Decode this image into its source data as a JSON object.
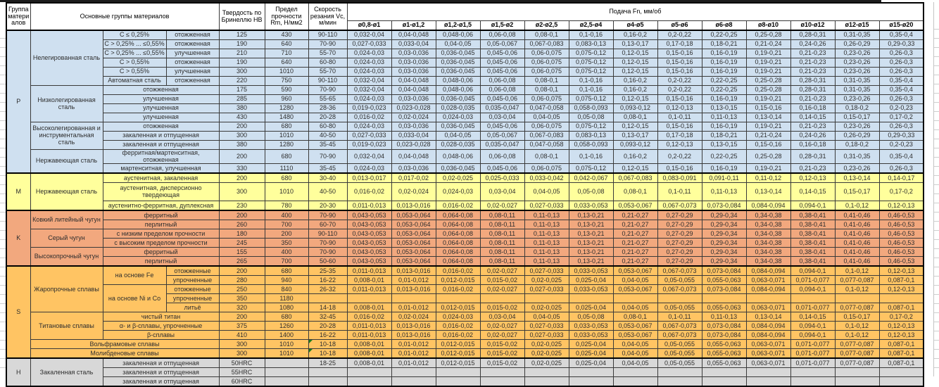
{
  "table": {
    "headers": {
      "group": "Группа материалов",
      "materials": "Основные группы материалов",
      "hardness": "Твердость по Бринеллю HB",
      "tensile": "Предел прочности Rm, Н/мм2",
      "speed": "Скорость резания Vc, м/мин",
      "feed": "Подача Fn, мм/об"
    },
    "feed_sizes": [
      "ø0,8-ø1",
      "ø1-ø1,2",
      "ø1,2-ø1,5",
      "ø1,5-ø2",
      "ø2-ø2,5",
      "ø2,5-ø4",
      "ø4-ø5",
      "ø5-ø6",
      "ø6-ø8",
      "ø8-ø10",
      "ø10-ø12",
      "ø12-ø15",
      "ø15-ø20"
    ],
    "feed_patterns": {
      "A": [
        "0,032-0,04",
        "0,04-0,048",
        "0,048-0,06",
        "0,06-0,08",
        "0,08-0,1",
        "0,1-0,16",
        "0,16-0,2",
        "0,2-0,22",
        "0,22-0,25",
        "0,25-0,28",
        "0,28-0,31",
        "0,31-0,35",
        "0,35-0,4"
      ],
      "B": [
        "0,027-0,033",
        "0,033-0,04",
        "0,04-0,05",
        "0,05-0,067",
        "0,067-0,083",
        "0,083-0,13",
        "0,13-0,17",
        "0,17-0,18",
        "0,18-0,21",
        "0,21-0,24",
        "0,24-0,26",
        "0,26-0,29",
        "0,29-0,33"
      ],
      "C": [
        "0,024-0,03",
        "0,03-0,036",
        "0,036-0,045",
        "0,045-0,06",
        "0,06-0,075",
        "0,075-0,12",
        "0,12-0,15",
        "0,15-0,16",
        "0,16-0,19",
        "0,19-0,21",
        "0,21-0,23",
        "0,23-0,26",
        "0,26-0,3"
      ],
      "D": [
        "0,019-0,023",
        "0,023-0,028",
        "0,028-0,035",
        "0,035-0,047",
        "0,047-0,058",
        "0,058-0,093",
        "0,093-0,12",
        "0,12-0,13",
        "0,13-0,15",
        "0,15-0,16",
        "0,16-0,18",
        "0,18-0,2",
        "0,2-0,23"
      ],
      "E": [
        "0,016-0,02",
        "0,02-0,024",
        "0,024-0,03",
        "0,03-0,04",
        "0,04-0,05",
        "0,05-0,08",
        "0,08-0,1",
        "0,1-0,11",
        "0,11-0,13",
        "0,13-0,14",
        "0,14-0,15",
        "0,15-0,17",
        "0,17-0,2"
      ],
      "F": [
        "0,013-0,017",
        "0,017-0,02",
        "0,02-0,025",
        "0,025-0,033",
        "0,033-0,042",
        "0,042-0,067",
        "0,067-0,083",
        "0,083-0,091",
        "0,091-0,11",
        "0,11-0,12",
        "0,12-0,13",
        "0,13-0,14",
        "0,14-0,17"
      ],
      "G": [
        "0,011-0,013",
        "0,013-0,016",
        "0,016-0,02",
        "0,02-0,027",
        "0,027-0,033",
        "0,033-0,053",
        "0,053-0,067",
        "0,067-0,073",
        "0,073-0,084",
        "0,084-0,094",
        "0,094-0,1",
        "0,1-0,12",
        "0,12-0,13"
      ],
      "H": [
        "0,008-0,01",
        "0,01-0,012",
        "0,012-0,015",
        "0,015-0,02",
        "0,02-0,025",
        "0,025-0,04",
        "0,04-0,05",
        "0,05-0,055",
        "0,055-0,063",
        "0,063-0,071",
        "0,071-0,077",
        "0,077-0,087",
        "0,087-0,1"
      ],
      "K": [
        "0,043-0,053",
        "0,053-0,064",
        "0,064-0,08",
        "0,08-0,11",
        "0,11-0,13",
        "0,13-0,21",
        "0,21-0,27",
        "0,27-0,29",
        "0,29-0,34",
        "0,34-0,38",
        "0,38-0,41",
        "0,41-0,46",
        "0,46-0,53"
      ]
    },
    "sections": [
      {
        "code": "P",
        "color": "#CFE0F0",
        "rows": [
          {
            "labels": [
              {
                "text": "Нелегированная сталь",
                "rs": 6
              },
              {
                "text": "C ≤ 0,25%"
              },
              {
                "text": "отожженная"
              }
            ],
            "hb": "125",
            "rm": "430",
            "vc": "90-110",
            "f": "A"
          },
          {
            "labels": [
              {
                "text": "C > 0,25% ... ≤0,55%"
              },
              {
                "text": "отожженная"
              }
            ],
            "hb": "190",
            "rm": "640",
            "vc": "70-90",
            "f": "B"
          },
          {
            "labels": [
              {
                "text": "C > 0,25% ... ≤0,55%"
              },
              {
                "text": "улучшенная"
              }
            ],
            "hb": "210",
            "rm": "710",
            "vc": "55-70",
            "f": "C"
          },
          {
            "labels": [
              {
                "text": "C > 0,55%"
              },
              {
                "text": "отожженная"
              }
            ],
            "hb": "190",
            "rm": "640",
            "vc": "60-80",
            "f": "C"
          },
          {
            "labels": [
              {
                "text": "C > 0,55%"
              },
              {
                "text": "улучшенная"
              }
            ],
            "hb": "300",
            "rm": "1010",
            "vc": "55-70",
            "f": "C"
          },
          {
            "labels": [
              {
                "text": "Автоматная сталь"
              },
              {
                "text": "отожженная"
              }
            ],
            "hb": "220",
            "rm": "750",
            "vc": "90-110",
            "f": "A"
          },
          {
            "labels": [
              {
                "text": "Низколегированная сталь",
                "rs": 4
              },
              {
                "text": "отожженная",
                "cs": 2
              }
            ],
            "hb": "175",
            "rm": "590",
            "vc": "70-90",
            "f": "A"
          },
          {
            "labels": [
              {
                "text": "улучшенная",
                "cs": 2
              }
            ],
            "hb": "285",
            "rm": "960",
            "vc": "55-65",
            "f": "C"
          },
          {
            "labels": [
              {
                "text": "улучшенная",
                "cs": 2
              }
            ],
            "hb": "380",
            "rm": "1280",
            "vc": "28-36",
            "f": "D"
          },
          {
            "labels": [
              {
                "text": "улучшенная",
                "cs": 2
              }
            ],
            "hb": "430",
            "rm": "1480",
            "vc": "20-28",
            "f": "E"
          },
          {
            "labels": [
              {
                "text": "Высоколегированная и инструментальная сталь",
                "rs": 3
              },
              {
                "text": "отожженная",
                "cs": 2
              }
            ],
            "hb": "200",
            "rm": "680",
            "vc": "60-80",
            "f": "C"
          },
          {
            "labels": [
              {
                "text": "закаленная и отпущенная",
                "cs": 2
              }
            ],
            "hb": "300",
            "rm": "1010",
            "vc": "40-50",
            "f": "B"
          },
          {
            "labels": [
              {
                "text": "закаленная и отпущенная",
                "cs": 2
              }
            ],
            "hb": "380",
            "rm": "1280",
            "vc": "35-45",
            "f": "D"
          },
          {
            "labels": [
              {
                "text": "Нержавеющая сталь",
                "rs": 2
              },
              {
                "text": "ферритная/мартенситная, отожженная",
                "cs": 2
              }
            ],
            "hb": "200",
            "rm": "680",
            "vc": "70-90",
            "f": "A"
          },
          {
            "labels": [
              {
                "text": "мартенситная, улучшенная",
                "cs": 2
              }
            ],
            "hb": "330",
            "rm": "1110",
            "vc": "35-45",
            "f": "C"
          }
        ]
      },
      {
        "code": "M",
        "color": "#FFFF9C",
        "rows": [
          {
            "labels": [
              {
                "text": "Нержавеющая сталь",
                "rs": 3
              },
              {
                "text": "аустенитная, закаленная",
                "cs": 2
              }
            ],
            "hb": "200",
            "rm": "680",
            "vc": "30-40",
            "f": "F"
          },
          {
            "labels": [
              {
                "text": "аустенитная, дисперсионно твердеющая",
                "cs": 2
              }
            ],
            "hb": "300",
            "rm": "1010",
            "vc": "40-50",
            "f": "E",
            "tall": true
          },
          {
            "labels": [
              {
                "text": "аустенитно-ферритная, дуплексная",
                "cs": 2
              }
            ],
            "hb": "230",
            "rm": "780",
            "vc": "20-30",
            "f": "G"
          }
        ]
      },
      {
        "code": "K",
        "color": "#F2A87E",
        "rows": [
          {
            "labels": [
              {
                "text": "Ковкий литейный чугун",
                "rs": 2
              },
              {
                "text": "ферритный",
                "cs": 2
              }
            ],
            "hb": "200",
            "rm": "400",
            "vc": "70-90",
            "f": "K"
          },
          {
            "labels": [
              {
                "text": "перлитный",
                "cs": 2
              }
            ],
            "hb": "260",
            "rm": "700",
            "vc": "60-70",
            "f": "K"
          },
          {
            "labels": [
              {
                "text": "Серый чугун",
                "rs": 2
              },
              {
                "text": "с низким пределом прочности",
                "cs": 2
              }
            ],
            "hb": "180",
            "rm": "200",
            "vc": "90-110",
            "f": "K"
          },
          {
            "labels": [
              {
                "text": "с высоким пределом прочности",
                "cs": 2
              }
            ],
            "hb": "245",
            "rm": "350",
            "vc": "70-90",
            "f": "K"
          },
          {
            "labels": [
              {
                "text": "Высокопрочный чугун",
                "rs": 2
              },
              {
                "text": "ферритный",
                "cs": 2
              }
            ],
            "hb": "155",
            "rm": "400",
            "vc": "70-90",
            "f": "K"
          },
          {
            "labels": [
              {
                "text": "перлитный",
                "cs": 2
              }
            ],
            "hb": "265",
            "rm": "700",
            "vc": "50-60",
            "f": "K"
          }
        ]
      },
      {
        "code": "S",
        "color": "#FFC463",
        "rows": [
          {
            "labels": [
              {
                "text": "Жаропрочные сплавы",
                "rs": 5
              },
              {
                "text": "на основе Fe",
                "rs": 2
              },
              {
                "text": "отожженные"
              }
            ],
            "hb": "200",
            "rm": "680",
            "vc": "25-35",
            "f": "G"
          },
          {
            "labels": [
              {
                "text": "упрочненные"
              }
            ],
            "hb": "280",
            "rm": "940",
            "vc": "16-22",
            "f": "H"
          },
          {
            "labels": [
              {
                "text": "на основе Ni и Co",
                "rs": 3
              },
              {
                "text": "отожженные"
              }
            ],
            "hb": "250",
            "rm": "840",
            "vc": "26-32",
            "f": "G"
          },
          {
            "labels": [
              {
                "text": "упрочненные"
              }
            ],
            "hb": "350",
            "rm": "1180",
            "vc": "",
            "f": null
          },
          {
            "labels": [
              {
                "text": "литьё"
              }
            ],
            "hb": "320",
            "rm": "1080",
            "vc": "14-18",
            "f": "H"
          },
          {
            "labels": [
              {
                "text": "Титановые сплавы",
                "rs": 3
              },
              {
                "text": "чистый титан",
                "cs": 2
              }
            ],
            "hb": "200",
            "rm": "680",
            "vc": "32-45",
            "f": "E"
          },
          {
            "labels": [
              {
                "text": "α- и β-сплавы, упрочненные",
                "cs": 2
              }
            ],
            "hb": "375",
            "rm": "1260",
            "vc": "20-28",
            "f": "G"
          },
          {
            "labels": [
              {
                "text": "β-сплавы",
                "cs": 2
              }
            ],
            "hb": "410",
            "rm": "1400",
            "vc": "16-22",
            "f": "G"
          },
          {
            "labels": [
              {
                "text": "Вольфрамовые сплавы",
                "cs": 3
              }
            ],
            "hb": "300",
            "rm": "1010",
            "vc": "10-18",
            "f": "H",
            "marker": true
          },
          {
            "labels": [
              {
                "text": "Молибденовые сплавы",
                "cs": 3
              }
            ],
            "hb": "300",
            "rm": "1010",
            "vc": "10-18",
            "f": "H",
            "marker": true
          }
        ]
      },
      {
        "code": "H",
        "color": "#D8D8D8",
        "rows": [
          {
            "labels": [
              {
                "text": "Закаленная сталь",
                "rs": 3
              },
              {
                "text": "закаленная и отпущенная",
                "cs": 2
              }
            ],
            "hb": "50HRC",
            "rm": "",
            "vc": "18-25",
            "f": "H"
          },
          {
            "labels": [
              {
                "text": "закаленная и отпущенная",
                "cs": 2
              }
            ],
            "hb": "55HRC",
            "rm": "",
            "vc": "",
            "f": null
          },
          {
            "labels": [
              {
                "text": "закаленная и отпущенная",
                "cs": 2
              }
            ],
            "hb": "60HRC",
            "rm": "",
            "vc": "",
            "f": null
          }
        ]
      }
    ],
    "comment_marker_color": "#1e7d1e"
  }
}
